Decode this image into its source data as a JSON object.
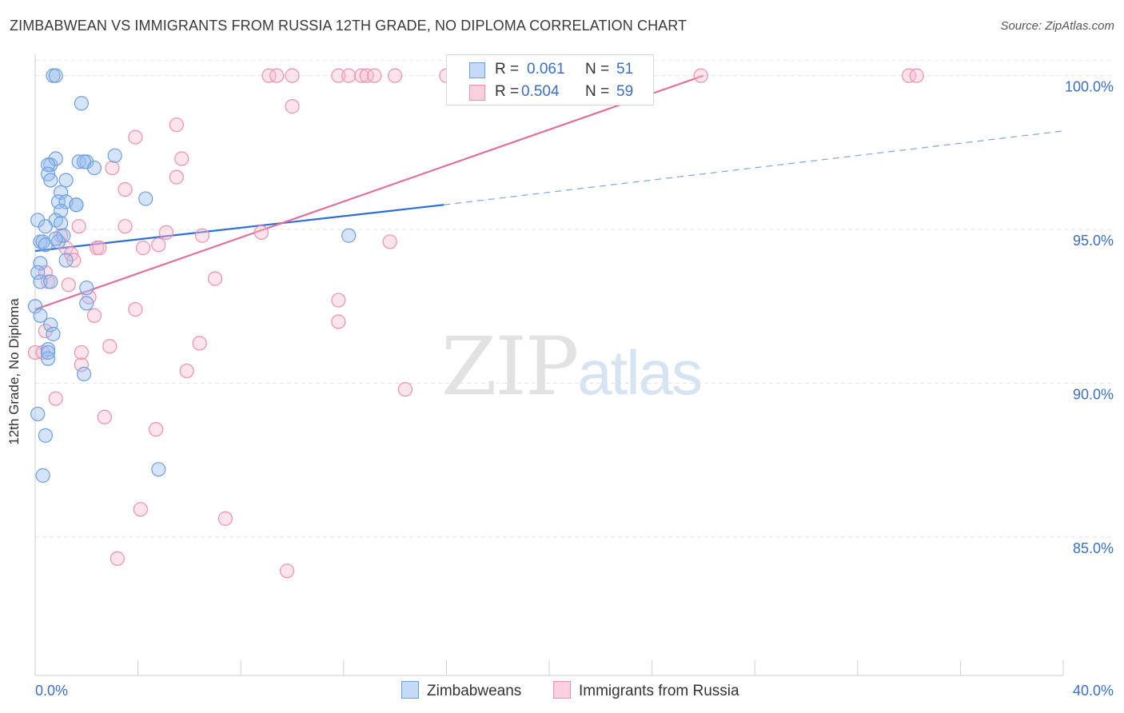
{
  "title": "ZIMBABWEAN VS IMMIGRANTS FROM RUSSIA 12TH GRADE, NO DIPLOMA CORRELATION CHART",
  "source": "Source: ZipAtlas.com",
  "watermark": {
    "zip": "ZIP",
    "atlas": "atlas"
  },
  "legend": {
    "rows": [
      {
        "r_label": "R =",
        "r_value": "0.061",
        "n_label": "N =",
        "n_value": "51"
      },
      {
        "r_label": "R =",
        "r_value": "0.504",
        "n_label": "N =",
        "n_value": "59"
      }
    ]
  },
  "bottom_legend": [
    "Zimbabweans",
    "Immigrants from Russia"
  ],
  "chart_data": {
    "type": "scatter",
    "title": "ZIMBABWEAN VS IMMIGRANTS FROM RUSSIA 12TH GRADE, NO DIPLOMA CORRELATION CHART",
    "xlabel": "",
    "ylabel": "12th Grade, No Diploma",
    "xlim": [
      0,
      40
    ],
    "ylim": [
      80.5,
      100.9
    ],
    "x_tick_labels": [
      "0.0%",
      "40.0%"
    ],
    "y_ticks": [
      85,
      90,
      95,
      100
    ],
    "y_tick_labels": [
      "85.0%",
      "90.0%",
      "95.0%",
      "100.0%"
    ],
    "grid": true,
    "colors": {
      "zimbabweans": "#6e9fe0",
      "russia": "#f08fb0",
      "blue_line": "#2f6fcf",
      "pink_line": "#e0709a"
    },
    "series": [
      {
        "name": "Zimbabweans",
        "points": [
          [
            0.7,
            100.0
          ],
          [
            0.8,
            100.0
          ],
          [
            1.8,
            99.1
          ],
          [
            0.6,
            97.1
          ],
          [
            0.8,
            97.3
          ],
          [
            0.5,
            97.1
          ],
          [
            1.7,
            97.2
          ],
          [
            2.0,
            97.2
          ],
          [
            2.3,
            97.0
          ],
          [
            3.1,
            97.4
          ],
          [
            0.5,
            96.8
          ],
          [
            0.6,
            96.6
          ],
          [
            1.2,
            96.6
          ],
          [
            1.9,
            97.2
          ],
          [
            1.0,
            96.2
          ],
          [
            0.9,
            95.9
          ],
          [
            1.2,
            95.9
          ],
          [
            1.6,
            95.8
          ],
          [
            1.0,
            95.6
          ],
          [
            4.3,
            96.0
          ],
          [
            0.1,
            95.3
          ],
          [
            0.8,
            95.3
          ],
          [
            0.4,
            95.1
          ],
          [
            1.0,
            95.2
          ],
          [
            1.1,
            94.8
          ],
          [
            0.2,
            94.6
          ],
          [
            0.3,
            94.6
          ],
          [
            0.9,
            94.6
          ],
          [
            1.2,
            94.0
          ],
          [
            0.2,
            93.9
          ],
          [
            0.1,
            93.6
          ],
          [
            0.2,
            93.3
          ],
          [
            0.6,
            93.3
          ],
          [
            2.0,
            93.1
          ],
          [
            2.0,
            92.6
          ],
          [
            0.0,
            92.5
          ],
          [
            0.2,
            92.2
          ],
          [
            0.6,
            91.9
          ],
          [
            0.7,
            91.6
          ],
          [
            0.5,
            91.1
          ],
          [
            0.5,
            90.8
          ],
          [
            1.9,
            90.3
          ],
          [
            0.1,
            89.0
          ],
          [
            0.4,
            88.3
          ],
          [
            0.3,
            87.0
          ],
          [
            4.8,
            87.2
          ],
          [
            12.2,
            94.8
          ],
          [
            0.4,
            94.5
          ],
          [
            0.8,
            94.7
          ],
          [
            0.5,
            91.0
          ],
          [
            1.6,
            95.8
          ]
        ]
      },
      {
        "name": "Immigrants from Russia",
        "points": [
          [
            9.1,
            100.0
          ],
          [
            9.4,
            100.0
          ],
          [
            10.0,
            100.0
          ],
          [
            11.8,
            100.0
          ],
          [
            12.2,
            100.0
          ],
          [
            12.7,
            100.0
          ],
          [
            12.9,
            100.0
          ],
          [
            13.2,
            100.0
          ],
          [
            14.0,
            100.0
          ],
          [
            16.0,
            100.0
          ],
          [
            25.9,
            100.0
          ],
          [
            34.0,
            100.0
          ],
          [
            34.3,
            100.0
          ],
          [
            10.0,
            99.0
          ],
          [
            5.5,
            98.4
          ],
          [
            3.9,
            98.0
          ],
          [
            5.7,
            97.3
          ],
          [
            3.0,
            97.0
          ],
          [
            5.5,
            96.7
          ],
          [
            3.5,
            96.3
          ],
          [
            1.7,
            95.1
          ],
          [
            3.5,
            95.1
          ],
          [
            5.1,
            94.9
          ],
          [
            6.5,
            94.8
          ],
          [
            8.8,
            94.9
          ],
          [
            1.0,
            94.8
          ],
          [
            1.2,
            94.4
          ],
          [
            2.4,
            94.4
          ],
          [
            2.5,
            94.4
          ],
          [
            4.2,
            94.4
          ],
          [
            4.8,
            94.5
          ],
          [
            13.8,
            94.6
          ],
          [
            1.4,
            94.2
          ],
          [
            1.5,
            94.0
          ],
          [
            0.4,
            93.6
          ],
          [
            7.0,
            93.4
          ],
          [
            2.1,
            92.8
          ],
          [
            11.8,
            92.7
          ],
          [
            3.9,
            92.4
          ],
          [
            2.3,
            92.2
          ],
          [
            11.8,
            92.0
          ],
          [
            0.4,
            91.7
          ],
          [
            2.9,
            91.2
          ],
          [
            6.4,
            91.3
          ],
          [
            0.0,
            91.0
          ],
          [
            1.8,
            90.6
          ],
          [
            5.9,
            90.4
          ],
          [
            14.4,
            89.8
          ],
          [
            0.8,
            89.5
          ],
          [
            2.7,
            88.9
          ],
          [
            4.7,
            88.5
          ],
          [
            4.1,
            85.9
          ],
          [
            7.4,
            85.6
          ],
          [
            3.2,
            84.3
          ],
          [
            9.8,
            83.9
          ],
          [
            0.5,
            93.3
          ],
          [
            1.3,
            93.2
          ],
          [
            0.3,
            91.0
          ],
          [
            1.8,
            91.0
          ]
        ]
      }
    ],
    "trend_lines": [
      {
        "series": "Zimbabweans",
        "solid": [
          [
            0,
            94.3
          ],
          [
            15.9,
            95.8
          ]
        ],
        "dashed": [
          [
            15.9,
            95.8
          ],
          [
            40,
            98.2
          ]
        ]
      },
      {
        "series": "Immigrants from Russia",
        "solid": [
          [
            0,
            92.4
          ],
          [
            26,
            100.0
          ]
        ]
      }
    ]
  }
}
